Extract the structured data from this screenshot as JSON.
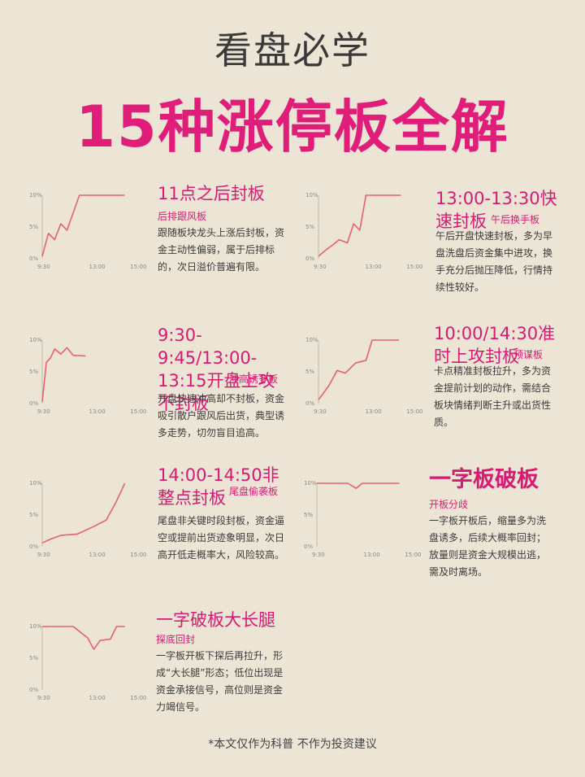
{
  "header": {
    "subtitle": "看盘必学",
    "title": "15种涨停板全解"
  },
  "axes": {
    "y_ticks": [
      "10%",
      "5%",
      "0%"
    ],
    "x_ticks": [
      "9:30",
      "13:00",
      "15:00"
    ]
  },
  "accent_color": "#e01e7a",
  "line_color": "#e8606e",
  "panels": [
    {
      "title": "11点之后封板",
      "tag": "后排跟风板",
      "desc": "跟随板块龙头上涨后封板，资金主动性偏弱，属于后排标的，次日溢价普遍有限。",
      "chart_data": {
        "type": "line",
        "ylim": [
          0,
          10
        ],
        "x": [
          "9:30",
          "",
          "",
          "",
          "",
          "",
          "13:00",
          "15:00"
        ],
        "values": [
          0.5,
          4.2,
          3.0,
          6.0,
          10,
          10,
          10,
          10
        ]
      }
    },
    {
      "title": "13:00-13:30快速封板",
      "tag": "午后换手板",
      "desc": "午后开盘快速封板，多为早盘洗盘后资金集中进攻，换手充分后抛压降低，行情持续性较好。",
      "chart_data": {
        "type": "line",
        "ylim": [
          0,
          10
        ]
      }
    },
    {
      "title": "9:30-9:45/13:00-13:15开盘上攻不封板",
      "tag": "冲高诱多板",
      "desc": "开盘快速冲高却不封板，资金吸引散户跟风后出货，典型诱多走势，切勿盲目追高。",
      "chart_data": {
        "type": "line",
        "ylim": [
          0,
          10
        ]
      }
    },
    {
      "title": "10:00/14:30准时上攻封板",
      "tag": "预谋板",
      "desc": "卡点精准封板拉升，多为资金提前计划的动作，需结合板块情绪判断主升或出货性质。",
      "chart_data": {
        "type": "line",
        "ylim": [
          0,
          10
        ]
      }
    },
    {
      "title": "14:00-14:50非整点封板",
      "tag": "尾盘偷袭板",
      "desc": "尾盘非关键时段封板，资金逼空或提前出货迹象明显，次日高开低走概率大，风险较高。",
      "chart_data": {
        "type": "line",
        "ylim": [
          0,
          10
        ]
      }
    },
    {
      "title": "一字板破板",
      "tag": "开板分歧",
      "desc": "一字板开板后，缩量多为洗盘诱多，后续大概率回封；放量则是资金大规模出逃，需及时离场。",
      "chart_data": {
        "type": "line",
        "ylim": [
          0,
          10
        ]
      }
    },
    {
      "title": "一字破板大长腿",
      "tag": "探底回封",
      "desc": "一字板开板下探后再拉升，形成“大长腿”形态；低位出现是资金承接信号，高位则是资金力竭信号。",
      "chart_data": {
        "type": "line",
        "ylim": [
          0,
          10
        ]
      }
    }
  ],
  "footer": "*本文仅作为科普 不作为投资建议"
}
